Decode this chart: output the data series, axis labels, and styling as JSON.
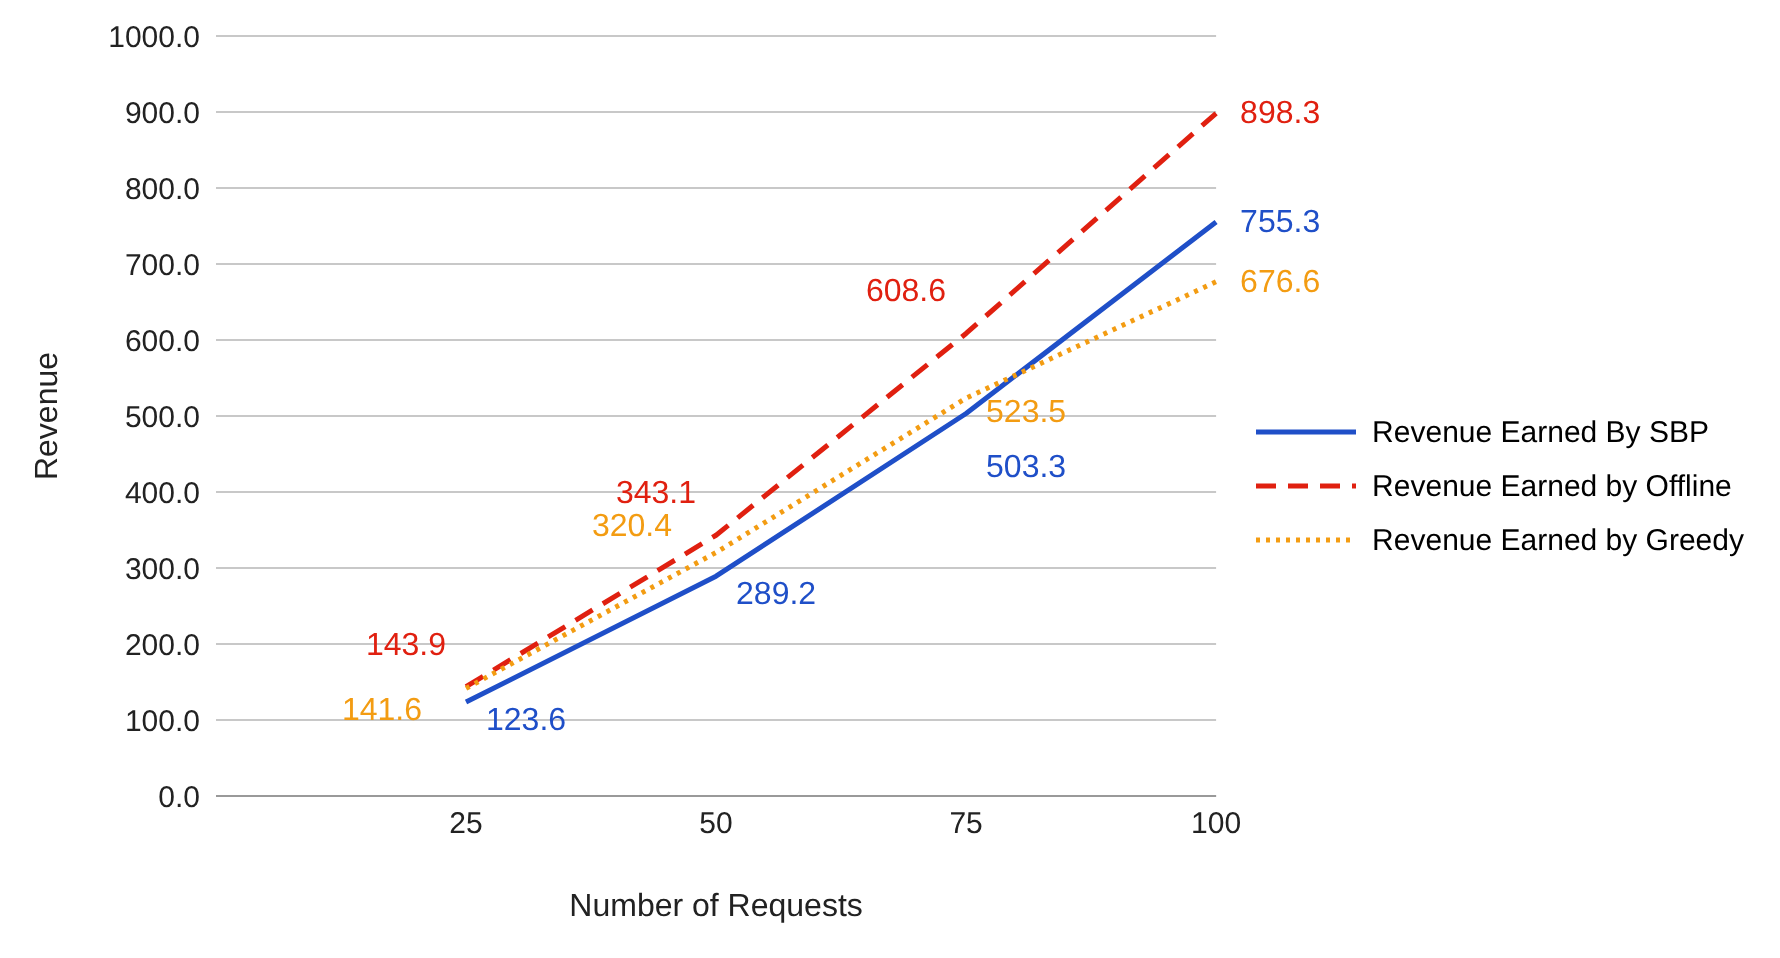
{
  "chart_data": {
    "type": "line",
    "xlabel": "Number of Requests",
    "ylabel": "Revenue",
    "categories": [
      null,
      "25",
      "50",
      "75",
      "100"
    ],
    "ylim": [
      0,
      1000
    ],
    "yticks": [
      {
        "value": 0,
        "label": "0.0"
      },
      {
        "value": 100,
        "label": "100.0"
      },
      {
        "value": 200,
        "label": "200.0"
      },
      {
        "value": 300,
        "label": "300.0"
      },
      {
        "value": 400,
        "label": "400.0"
      },
      {
        "value": 500,
        "label": "500.0"
      },
      {
        "value": 600,
        "label": "600.0"
      },
      {
        "value": 700,
        "label": "700.0"
      },
      {
        "value": 800,
        "label": "800.0"
      },
      {
        "value": 900,
        "label": "900.0"
      },
      {
        "value": 1000,
        "label": "1000.0"
      }
    ],
    "grid": "y",
    "legend": "right",
    "data_labels": true,
    "marker": "none",
    "series": [
      {
        "name": "Revenue Earned By SBP",
        "color": "#1f4fc8",
        "line_style": "solid",
        "values": [
          null,
          123.6,
          289.2,
          503.3,
          755.3
        ]
      },
      {
        "name": "Revenue Earned by Offline",
        "color": "#e02010",
        "line_style": "dashed",
        "values": [
          null,
          143.9,
          343.1,
          608.6,
          898.3
        ]
      },
      {
        "name": "Revenue Earned by Greedy",
        "color": "#f39c12",
        "line_style": "dotted",
        "values": [
          null,
          141.6,
          320.4,
          523.5,
          676.6
        ]
      }
    ]
  }
}
